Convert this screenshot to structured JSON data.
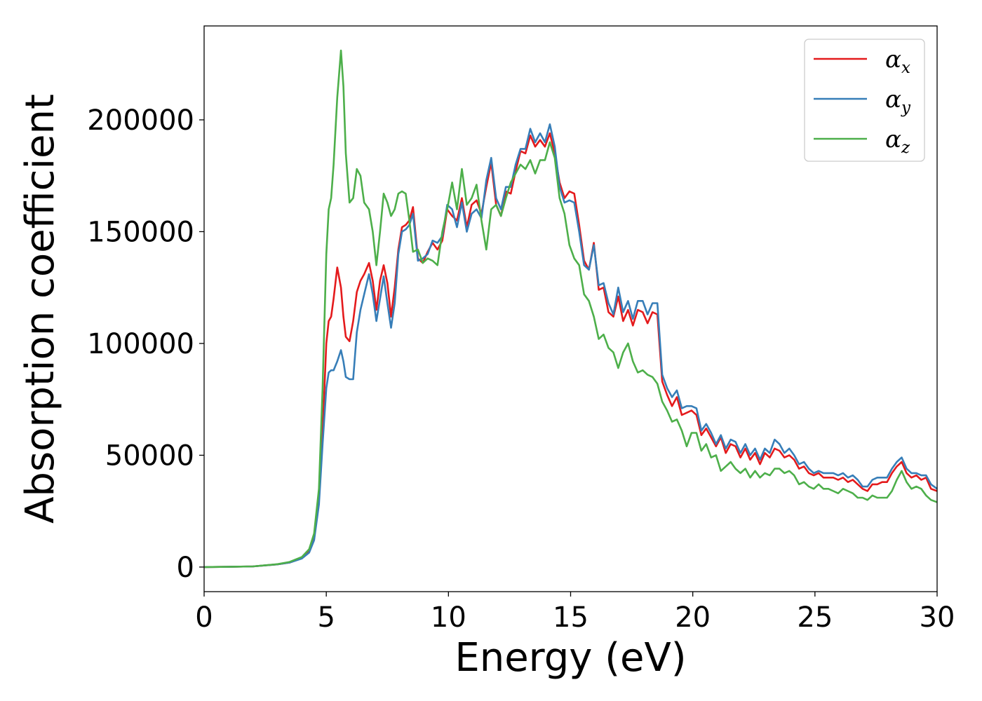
{
  "chart_data": {
    "type": "line",
    "xlabel": "Energy (eV)",
    "ylabel": "Absorption coefficient",
    "xlim": [
      0,
      30
    ],
    "ylim": [
      -11000,
      242000
    ],
    "xticks": [
      0,
      5,
      10,
      15,
      20,
      25,
      30
    ],
    "xtick_labels": [
      "0",
      "5",
      "10",
      "15",
      "20",
      "25",
      "30"
    ],
    "yticks": [
      0,
      50000,
      100000,
      150000,
      200000
    ],
    "ytick_labels": [
      "0",
      "50000",
      "100000",
      "150000",
      "200000"
    ],
    "grid": false,
    "legend_position": "top-right",
    "series": [
      {
        "name": "α",
        "name_sub": "x",
        "color": "#e41a1c",
        "x": [
          0,
          1,
          2,
          3,
          3.5,
          4,
          4.3,
          4.5,
          4.7,
          4.85,
          5,
          5.1,
          5.2,
          5.3,
          5.45,
          5.6,
          5.7,
          5.8,
          5.95,
          6.1,
          6.25,
          6.4,
          6.55,
          6.75,
          6.9,
          7.05,
          7.2,
          7.35,
          7.5,
          7.65,
          7.8,
          7.95,
          8.1,
          8.25,
          8.4,
          8.55,
          8.75,
          8.95,
          9.15,
          9.35,
          9.55,
          9.75,
          9.95,
          10.15,
          10.35,
          10.55,
          10.75,
          10.95,
          11.15,
          11.35,
          11.55,
          11.75,
          11.95,
          12.15,
          12.35,
          12.55,
          12.75,
          12.95,
          13.15,
          13.35,
          13.55,
          13.75,
          13.95,
          14.15,
          14.35,
          14.55,
          14.75,
          14.95,
          15.15,
          15.35,
          15.55,
          15.75,
          15.95,
          16.15,
          16.35,
          16.55,
          16.75,
          16.95,
          17.15,
          17.35,
          17.55,
          17.75,
          17.95,
          18.15,
          18.35,
          18.55,
          18.75,
          18.95,
          19.15,
          19.35,
          19.55,
          19.75,
          19.95,
          20.15,
          20.35,
          20.55,
          20.75,
          20.95,
          21.15,
          21.35,
          21.55,
          21.75,
          21.95,
          22.15,
          22.35,
          22.55,
          22.75,
          22.95,
          23.15,
          23.35,
          23.55,
          23.75,
          23.95,
          24.15,
          24.35,
          24.55,
          24.75,
          24.95,
          25.15,
          25.35,
          25.55,
          25.75,
          25.95,
          26.15,
          26.35,
          26.55,
          26.75,
          26.95,
          27.15,
          27.35,
          27.55,
          27.75,
          27.95,
          28.15,
          28.35,
          28.55,
          28.75,
          28.95,
          29.15,
          29.35,
          29.55,
          29.75,
          30
        ],
        "y": [
          0,
          100,
          300,
          1200,
          2000,
          4000,
          7000,
          13000,
          30000,
          60000,
          100000,
          110000,
          112000,
          120000,
          134000,
          125000,
          112000,
          103000,
          101000,
          110000,
          123000,
          128000,
          131000,
          136000,
          128000,
          115000,
          128000,
          135000,
          127000,
          112000,
          125000,
          142000,
          152000,
          153000,
          155000,
          161000,
          138000,
          136000,
          141000,
          145000,
          142000,
          146000,
          160000,
          157000,
          155000,
          165000,
          152000,
          162000,
          164000,
          158000,
          170000,
          181000,
          162000,
          157000,
          168000,
          167000,
          177000,
          186000,
          185000,
          193000,
          188000,
          191000,
          188000,
          194000,
          185000,
          172000,
          165000,
          168000,
          167000,
          153000,
          137000,
          133000,
          145000,
          124000,
          125000,
          114000,
          112000,
          121000,
          110000,
          115000,
          108000,
          115000,
          114000,
          109000,
          114000,
          113000,
          83000,
          77000,
          72000,
          76000,
          68000,
          69000,
          70000,
          68000,
          59000,
          62000,
          58000,
          54000,
          58000,
          51000,
          55000,
          54000,
          49000,
          53000,
          48000,
          51000,
          46000,
          51000,
          49000,
          53000,
          52000,
          49000,
          50000,
          48000,
          44000,
          45000,
          42000,
          41000,
          42000,
          40000,
          40000,
          40000,
          39000,
          40000,
          38000,
          39000,
          37000,
          35000,
          34000,
          37000,
          37000,
          38000,
          38000,
          42000,
          45000,
          47000,
          42000,
          40000,
          41000,
          39000,
          40000,
          35000,
          34000
        ]
      },
      {
        "name": "α",
        "name_sub": "y",
        "color": "#377eb8",
        "x": [
          0,
          1,
          2,
          3,
          3.5,
          4,
          4.3,
          4.5,
          4.7,
          4.85,
          5,
          5.1,
          5.2,
          5.3,
          5.45,
          5.6,
          5.7,
          5.8,
          5.95,
          6.1,
          6.25,
          6.4,
          6.55,
          6.75,
          6.9,
          7.05,
          7.2,
          7.35,
          7.5,
          7.65,
          7.8,
          7.95,
          8.1,
          8.25,
          8.4,
          8.55,
          8.75,
          8.95,
          9.15,
          9.35,
          9.55,
          9.75,
          9.95,
          10.15,
          10.35,
          10.55,
          10.75,
          10.95,
          11.15,
          11.35,
          11.55,
          11.75,
          11.95,
          12.15,
          12.35,
          12.55,
          12.75,
          12.95,
          13.15,
          13.35,
          13.55,
          13.75,
          13.95,
          14.15,
          14.35,
          14.55,
          14.75,
          14.95,
          15.15,
          15.35,
          15.55,
          15.75,
          15.95,
          16.15,
          16.35,
          16.55,
          16.75,
          16.95,
          17.15,
          17.35,
          17.55,
          17.75,
          17.95,
          18.15,
          18.35,
          18.55,
          18.75,
          18.95,
          19.15,
          19.35,
          19.55,
          19.75,
          19.95,
          20.15,
          20.35,
          20.55,
          20.75,
          20.95,
          21.15,
          21.35,
          21.55,
          21.75,
          21.95,
          22.15,
          22.35,
          22.55,
          22.75,
          22.95,
          23.15,
          23.35,
          23.55,
          23.75,
          23.95,
          24.15,
          24.35,
          24.55,
          24.75,
          24.95,
          25.15,
          25.35,
          25.55,
          25.75,
          25.95,
          26.15,
          26.35,
          26.55,
          26.75,
          26.95,
          27.15,
          27.35,
          27.55,
          27.75,
          27.95,
          28.15,
          28.35,
          28.55,
          28.75,
          28.95,
          29.15,
          29.35,
          29.55,
          29.75,
          30
        ],
        "y": [
          0,
          100,
          300,
          1200,
          2000,
          3800,
          6500,
          12000,
          28000,
          55000,
          80000,
          87000,
          88000,
          88000,
          92000,
          97000,
          92000,
          85000,
          84000,
          84000,
          105000,
          115000,
          122000,
          131000,
          122000,
          110000,
          120000,
          130000,
          118000,
          107000,
          118000,
          140000,
          150000,
          151000,
          153000,
          158000,
          137000,
          138000,
          140000,
          146000,
          145000,
          148000,
          162000,
          160000,
          152000,
          163000,
          150000,
          158000,
          160000,
          156000,
          173000,
          183000,
          165000,
          160000,
          170000,
          170000,
          180000,
          187000,
          187000,
          196000,
          190000,
          194000,
          190000,
          198000,
          188000,
          170000,
          163000,
          164000,
          163000,
          150000,
          135000,
          133000,
          144000,
          126000,
          127000,
          118000,
          113000,
          125000,
          114000,
          119000,
          111000,
          119000,
          119000,
          113000,
          118000,
          118000,
          86000,
          80000,
          76000,
          79000,
          71000,
          72000,
          72000,
          71000,
          61000,
          64000,
          60000,
          55000,
          59000,
          53000,
          57000,
          56000,
          51000,
          55000,
          50000,
          53000,
          48000,
          53000,
          51000,
          57000,
          55000,
          51000,
          53000,
          50000,
          46000,
          47000,
          44000,
          42000,
          43000,
          42000,
          42000,
          42000,
          41000,
          42000,
          40000,
          41000,
          39000,
          36000,
          36000,
          39000,
          40000,
          40000,
          40000,
          44000,
          47000,
          49000,
          44000,
          42000,
          42000,
          41000,
          41000,
          37000,
          35000
        ]
      },
      {
        "name": "α",
        "name_sub": "z",
        "color": "#4daf4a",
        "x": [
          0,
          1,
          2,
          3,
          3.5,
          4,
          4.3,
          4.5,
          4.7,
          4.85,
          5,
          5.1,
          5.2,
          5.3,
          5.45,
          5.6,
          5.7,
          5.8,
          5.95,
          6.1,
          6.25,
          6.4,
          6.55,
          6.75,
          6.9,
          7.05,
          7.2,
          7.35,
          7.5,
          7.65,
          7.8,
          7.95,
          8.1,
          8.25,
          8.4,
          8.55,
          8.75,
          8.95,
          9.15,
          9.35,
          9.55,
          9.75,
          9.95,
          10.15,
          10.35,
          10.55,
          10.75,
          10.95,
          11.15,
          11.35,
          11.55,
          11.75,
          11.95,
          12.15,
          12.35,
          12.55,
          12.75,
          12.95,
          13.15,
          13.35,
          13.55,
          13.75,
          13.95,
          14.15,
          14.35,
          14.55,
          14.75,
          14.95,
          15.15,
          15.35,
          15.55,
          15.75,
          15.95,
          16.15,
          16.35,
          16.55,
          16.75,
          16.95,
          17.15,
          17.35,
          17.55,
          17.75,
          17.95,
          18.15,
          18.35,
          18.55,
          18.75,
          18.95,
          19.15,
          19.35,
          19.55,
          19.75,
          19.95,
          20.15,
          20.35,
          20.55,
          20.75,
          20.95,
          21.15,
          21.35,
          21.55,
          21.75,
          21.95,
          22.15,
          22.35,
          22.55,
          22.75,
          22.95,
          23.15,
          23.35,
          23.55,
          23.75,
          23.95,
          24.15,
          24.35,
          24.55,
          24.75,
          24.95,
          25.15,
          25.35,
          25.55,
          25.75,
          25.95,
          26.15,
          26.35,
          26.55,
          26.75,
          26.95,
          27.15,
          27.35,
          27.55,
          27.75,
          27.95,
          28.15,
          28.35,
          28.55,
          28.75,
          28.95,
          29.15,
          29.35,
          29.55,
          29.75,
          30
        ],
        "y": [
          0,
          100,
          300,
          1300,
          2300,
          4500,
          8000,
          15000,
          35000,
          80000,
          140000,
          160000,
          165000,
          180000,
          210000,
          231000,
          215000,
          185000,
          163000,
          165000,
          178000,
          175000,
          163000,
          160000,
          150000,
          135000,
          150000,
          167000,
          163000,
          157000,
          160000,
          167000,
          168000,
          167000,
          155000,
          141000,
          142000,
          136000,
          138000,
          137000,
          135000,
          150000,
          160000,
          172000,
          160000,
          178000,
          162000,
          165000,
          171000,
          155000,
          142000,
          160000,
          162000,
          157000,
          165000,
          172000,
          176000,
          180000,
          178000,
          182000,
          176000,
          182000,
          182000,
          190000,
          183000,
          165000,
          158000,
          144000,
          138000,
          135000,
          122000,
          119000,
          112000,
          102000,
          104000,
          98000,
          96000,
          89000,
          96000,
          100000,
          92000,
          87000,
          88000,
          86000,
          85000,
          82000,
          74000,
          70000,
          65000,
          66000,
          61000,
          54000,
          60000,
          60000,
          52000,
          55000,
          49000,
          50000,
          43000,
          45000,
          47000,
          44000,
          42000,
          44000,
          40000,
          43000,
          40000,
          42000,
          41000,
          44000,
          44000,
          42000,
          43000,
          41000,
          37000,
          38000,
          36000,
          35000,
          37000,
          35000,
          35000,
          34000,
          33000,
          35000,
          34000,
          33000,
          31000,
          31000,
          30000,
          32000,
          31000,
          31000,
          31000,
          34000,
          39000,
          43000,
          38000,
          35000,
          36000,
          35000,
          32000,
          30000,
          29000
        ]
      }
    ]
  }
}
